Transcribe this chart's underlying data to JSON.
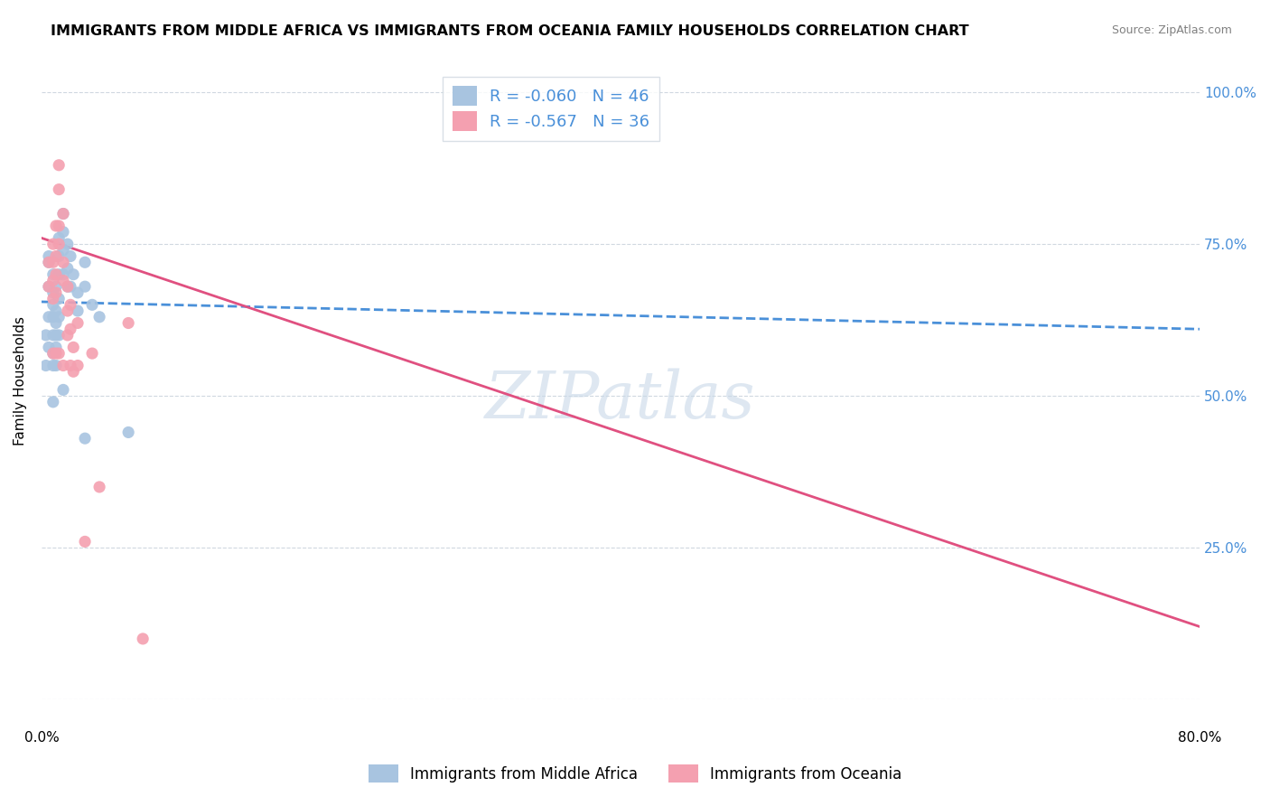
{
  "title": "IMMIGRANTS FROM MIDDLE AFRICA VS IMMIGRANTS FROM OCEANIA FAMILY HOUSEHOLDS CORRELATION CHART",
  "source": "Source: ZipAtlas.com",
  "ylabel": "Family Households",
  "xlim": [
    0.0,
    0.8
  ],
  "ylim": [
    0.0,
    1.05
  ],
  "r_blue": -0.06,
  "n_blue": 46,
  "r_pink": -0.567,
  "n_pink": 36,
  "blue_color": "#a8c4e0",
  "pink_color": "#f4a0b0",
  "blue_line_color": "#4a90d9",
  "pink_line_color": "#e05080",
  "blue_scatter": [
    [
      0.005,
      0.58
    ],
    [
      0.005,
      0.63
    ],
    [
      0.005,
      0.68
    ],
    [
      0.005,
      0.72
    ],
    [
      0.005,
      0.73
    ],
    [
      0.008,
      0.7
    ],
    [
      0.008,
      0.67
    ],
    [
      0.008,
      0.65
    ],
    [
      0.008,
      0.63
    ],
    [
      0.008,
      0.6
    ],
    [
      0.008,
      0.57
    ],
    [
      0.008,
      0.55
    ],
    [
      0.01,
      0.68
    ],
    [
      0.01,
      0.64
    ],
    [
      0.01,
      0.62
    ],
    [
      0.01,
      0.6
    ],
    [
      0.01,
      0.58
    ],
    [
      0.01,
      0.55
    ],
    [
      0.012,
      0.76
    ],
    [
      0.012,
      0.73
    ],
    [
      0.012,
      0.7
    ],
    [
      0.012,
      0.66
    ],
    [
      0.012,
      0.63
    ],
    [
      0.012,
      0.6
    ],
    [
      0.015,
      0.8
    ],
    [
      0.015,
      0.77
    ],
    [
      0.015,
      0.74
    ],
    [
      0.015,
      0.7
    ],
    [
      0.018,
      0.75
    ],
    [
      0.018,
      0.71
    ],
    [
      0.018,
      0.68
    ],
    [
      0.02,
      0.73
    ],
    [
      0.02,
      0.68
    ],
    [
      0.022,
      0.7
    ],
    [
      0.025,
      0.67
    ],
    [
      0.025,
      0.64
    ],
    [
      0.03,
      0.72
    ],
    [
      0.03,
      0.68
    ],
    [
      0.035,
      0.65
    ],
    [
      0.04,
      0.63
    ],
    [
      0.008,
      0.49
    ],
    [
      0.015,
      0.51
    ],
    [
      0.03,
      0.43
    ],
    [
      0.06,
      0.44
    ],
    [
      0.003,
      0.55
    ],
    [
      0.003,
      0.6
    ]
  ],
  "pink_scatter": [
    [
      0.005,
      0.72
    ],
    [
      0.005,
      0.68
    ],
    [
      0.008,
      0.75
    ],
    [
      0.008,
      0.72
    ],
    [
      0.008,
      0.69
    ],
    [
      0.008,
      0.66
    ],
    [
      0.01,
      0.78
    ],
    [
      0.01,
      0.73
    ],
    [
      0.01,
      0.7
    ],
    [
      0.01,
      0.67
    ],
    [
      0.012,
      0.88
    ],
    [
      0.012,
      0.84
    ],
    [
      0.012,
      0.78
    ],
    [
      0.012,
      0.75
    ],
    [
      0.015,
      0.8
    ],
    [
      0.015,
      0.72
    ],
    [
      0.015,
      0.69
    ],
    [
      0.018,
      0.68
    ],
    [
      0.018,
      0.64
    ],
    [
      0.018,
      0.6
    ],
    [
      0.02,
      0.65
    ],
    [
      0.02,
      0.61
    ],
    [
      0.022,
      0.58
    ],
    [
      0.022,
      0.54
    ],
    [
      0.025,
      0.62
    ],
    [
      0.025,
      0.55
    ],
    [
      0.03,
      0.26
    ],
    [
      0.035,
      0.57
    ],
    [
      0.04,
      0.35
    ],
    [
      0.06,
      0.62
    ],
    [
      0.07,
      0.1
    ],
    [
      0.008,
      0.57
    ],
    [
      0.01,
      0.57
    ],
    [
      0.012,
      0.57
    ],
    [
      0.015,
      0.55
    ],
    [
      0.02,
      0.55
    ]
  ],
  "watermark": "ZIPatlas",
  "watermark_color": "#c8d8e8",
  "background_color": "#ffffff",
  "grid_color": "#d0d8e0",
  "right_tick_labels": [
    "",
    "25.0%",
    "50.0%",
    "75.0%",
    "100.0%"
  ],
  "legend_label_blue": "Immigrants from Middle Africa",
  "legend_label_pink": "Immigrants from Oceania"
}
